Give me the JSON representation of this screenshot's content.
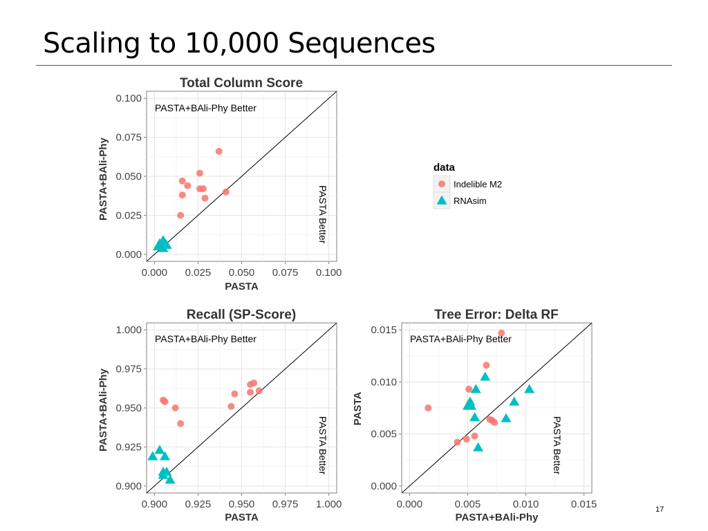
{
  "slide": {
    "title": "Scaling to 10,000 Sequences",
    "page_number": "17"
  },
  "legend": {
    "title": "data",
    "entries": [
      {
        "label": "Indelible M2",
        "color": "#F8766D",
        "shape": "circle"
      },
      {
        "label": "RNAsim",
        "color": "#00BFC4",
        "shape": "triangle"
      }
    ]
  },
  "chart_data": [
    {
      "type": "scatter",
      "title": "Total Column Score",
      "xlabel": "PASTA",
      "ylabel": "PASTA+BAli-Phy",
      "xlim": [
        0.0,
        0.1
      ],
      "ylim": [
        0.0,
        0.1
      ],
      "xticks": [
        "0.000",
        "0.025",
        "0.050",
        "0.075",
        "0.100"
      ],
      "yticks": [
        "0.000",
        "0.025",
        "0.050",
        "0.075",
        "0.100"
      ],
      "grid": true,
      "diagonal": true,
      "annotations": {
        "upper_left": "PASTA+BAli-Phy Better",
        "lower_right": "PASTA Better"
      },
      "series": [
        {
          "name": "Indelible M2",
          "points": [
            [
              0.037,
              0.066
            ],
            [
              0.026,
              0.052
            ],
            [
              0.016,
              0.047
            ],
            [
              0.019,
              0.044
            ],
            [
              0.026,
              0.042
            ],
            [
              0.028,
              0.042
            ],
            [
              0.041,
              0.04
            ],
            [
              0.016,
              0.038
            ],
            [
              0.029,
              0.036
            ],
            [
              0.015,
              0.025
            ]
          ]
        },
        {
          "name": "RNAsim",
          "points": [
            [
              0.003,
              0.007
            ],
            [
              0.005,
              0.009
            ],
            [
              0.006,
              0.007
            ],
            [
              0.002,
              0.005
            ],
            [
              0.004,
              0.006
            ],
            [
              0.005,
              0.004
            ],
            [
              0.007,
              0.006
            ]
          ]
        }
      ]
    },
    {
      "type": "scatter",
      "title": "Recall (SP-Score)",
      "xlabel": "PASTA",
      "ylabel": "PASTA+BAli-Phy",
      "xlim": [
        0.9,
        1.0
      ],
      "ylim": [
        0.9,
        1.0
      ],
      "xticks": [
        "0.900",
        "0.925",
        "0.950",
        "0.975",
        "1.000"
      ],
      "yticks": [
        "0.900",
        "0.925",
        "0.950",
        "0.975",
        "1.000"
      ],
      "grid": true,
      "diagonal": true,
      "annotations": {
        "upper_left": "PASTA+BAli-Phy Better",
        "lower_right": "PASTA Better"
      },
      "series": [
        {
          "name": "Indelible M2",
          "points": [
            [
              0.957,
              0.966
            ],
            [
              0.955,
              0.965
            ],
            [
              0.96,
              0.961
            ],
            [
              0.955,
              0.96
            ],
            [
              0.946,
              0.959
            ],
            [
              0.905,
              0.955
            ],
            [
              0.906,
              0.954
            ],
            [
              0.912,
              0.95
            ],
            [
              0.944,
              0.951
            ],
            [
              0.915,
              0.94
            ]
          ]
        },
        {
          "name": "RNAsim",
          "points": [
            [
              0.903,
              0.923
            ],
            [
              0.899,
              0.919
            ],
            [
              0.906,
              0.919
            ],
            [
              0.905,
              0.909
            ],
            [
              0.907,
              0.909
            ],
            [
              0.905,
              0.907
            ],
            [
              0.909,
              0.904
            ]
          ]
        }
      ]
    },
    {
      "type": "scatter",
      "title": "Tree Error: Delta RF",
      "xlabel": "PASTA+BAli-Phy",
      "ylabel": "PASTA",
      "xlim": [
        0.0,
        0.015
      ],
      "ylim": [
        0.0,
        0.015
      ],
      "xticks": [
        "0.000",
        "0.005",
        "0.010",
        "0.015"
      ],
      "yticks": [
        "0.000",
        "0.005",
        "0.010",
        "0.015"
      ],
      "grid": true,
      "diagonal": true,
      "annotations": {
        "upper_left": "PASTA+BAli-Phy Better",
        "lower_right": "PASTA Better"
      },
      "series": [
        {
          "name": "Indelible M2",
          "points": [
            [
              0.0079,
              0.0147
            ],
            [
              0.0066,
              0.0116
            ],
            [
              0.0051,
              0.0093
            ],
            [
              0.0016,
              0.0075
            ],
            [
              0.0052,
              0.008
            ],
            [
              0.0069,
              0.0064
            ],
            [
              0.0071,
              0.0063
            ],
            [
              0.0073,
              0.0061
            ],
            [
              0.0056,
              0.0048
            ],
            [
              0.0049,
              0.0045
            ],
            [
              0.0041,
              0.0042
            ]
          ]
        },
        {
          "name": "RNAsim",
          "points": [
            [
              0.0065,
              0.0105
            ],
            [
              0.0057,
              0.0093
            ],
            [
              0.0052,
              0.0081
            ],
            [
              0.005,
              0.0077
            ],
            [
              0.0053,
              0.0077
            ],
            [
              0.0056,
              0.0066
            ],
            [
              0.0103,
              0.0093
            ],
            [
              0.009,
              0.0081
            ],
            [
              0.0083,
              0.0065
            ],
            [
              0.0059,
              0.0037
            ]
          ]
        }
      ]
    }
  ]
}
